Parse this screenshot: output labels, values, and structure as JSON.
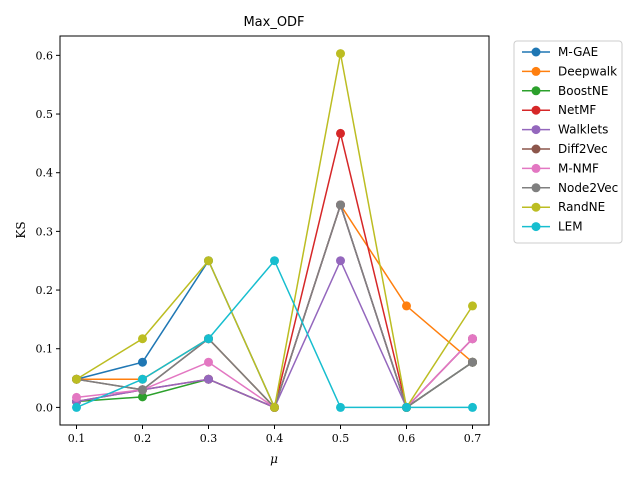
{
  "chart_data": {
    "type": "line",
    "title": "Max_ODF",
    "xlabel": "μ",
    "ylabel": "KS",
    "x": [
      0.1,
      0.2,
      0.3,
      0.4,
      0.5,
      0.6,
      0.7
    ],
    "x_tick_labels": [
      "0.1",
      "0.2",
      "0.3",
      "0.4",
      "0.5",
      "0.6",
      "0.7"
    ],
    "xlim": [
      0.075,
      0.725
    ],
    "ylim": [
      -0.03,
      0.633
    ],
    "y_ticks": [
      0.0,
      0.1,
      0.2,
      0.3,
      0.4,
      0.5,
      0.6
    ],
    "y_tick_labels": [
      "0.0",
      "0.1",
      "0.2",
      "0.3",
      "0.4",
      "0.5",
      "0.6"
    ],
    "grid": false,
    "legend_position": "outside-top-right",
    "series": [
      {
        "name": "M-GAE",
        "color": "#1f77b4",
        "values": [
          0.048,
          0.077,
          0.25,
          0.0,
          0.345,
          0.0,
          0.077
        ]
      },
      {
        "name": "Deepwalk",
        "color": "#ff7f0e",
        "values": [
          0.048,
          0.048,
          0.117,
          0.0,
          0.345,
          0.173,
          0.077
        ]
      },
      {
        "name": "BoostNE",
        "color": "#2ca02c",
        "values": [
          0.01,
          0.018,
          0.048,
          0.0,
          0.345,
          0.0,
          0.077
        ]
      },
      {
        "name": "NetMF",
        "color": "#d62728",
        "values": [
          0.01,
          0.03,
          0.048,
          0.0,
          0.467,
          0.0,
          0.117
        ]
      },
      {
        "name": "Walklets",
        "color": "#9467bd",
        "values": [
          0.01,
          0.03,
          0.048,
          0.0,
          0.25,
          0.0,
          0.117
        ]
      },
      {
        "name": "Diff2Vec",
        "color": "#8c564b",
        "values": [
          0.048,
          0.03,
          0.117,
          0.0,
          0.345,
          0.0,
          0.077
        ]
      },
      {
        "name": "M-NMF",
        "color": "#e377c2",
        "values": [
          0.017,
          0.03,
          0.077,
          0.0,
          0.345,
          0.0,
          0.117
        ]
      },
      {
        "name": "Node2Vec",
        "color": "#7f7f7f",
        "values": [
          0.048,
          0.03,
          0.117,
          0.0,
          0.345,
          0.0,
          0.077
        ]
      },
      {
        "name": "RandNE",
        "color": "#bcbd22",
        "values": [
          0.048,
          0.117,
          0.25,
          0.0,
          0.603,
          0.0,
          0.173
        ]
      },
      {
        "name": "LEM",
        "color": "#17becf",
        "values": [
          0.0,
          0.048,
          0.117,
          0.25,
          0.0,
          0.0,
          0.0
        ]
      }
    ]
  }
}
